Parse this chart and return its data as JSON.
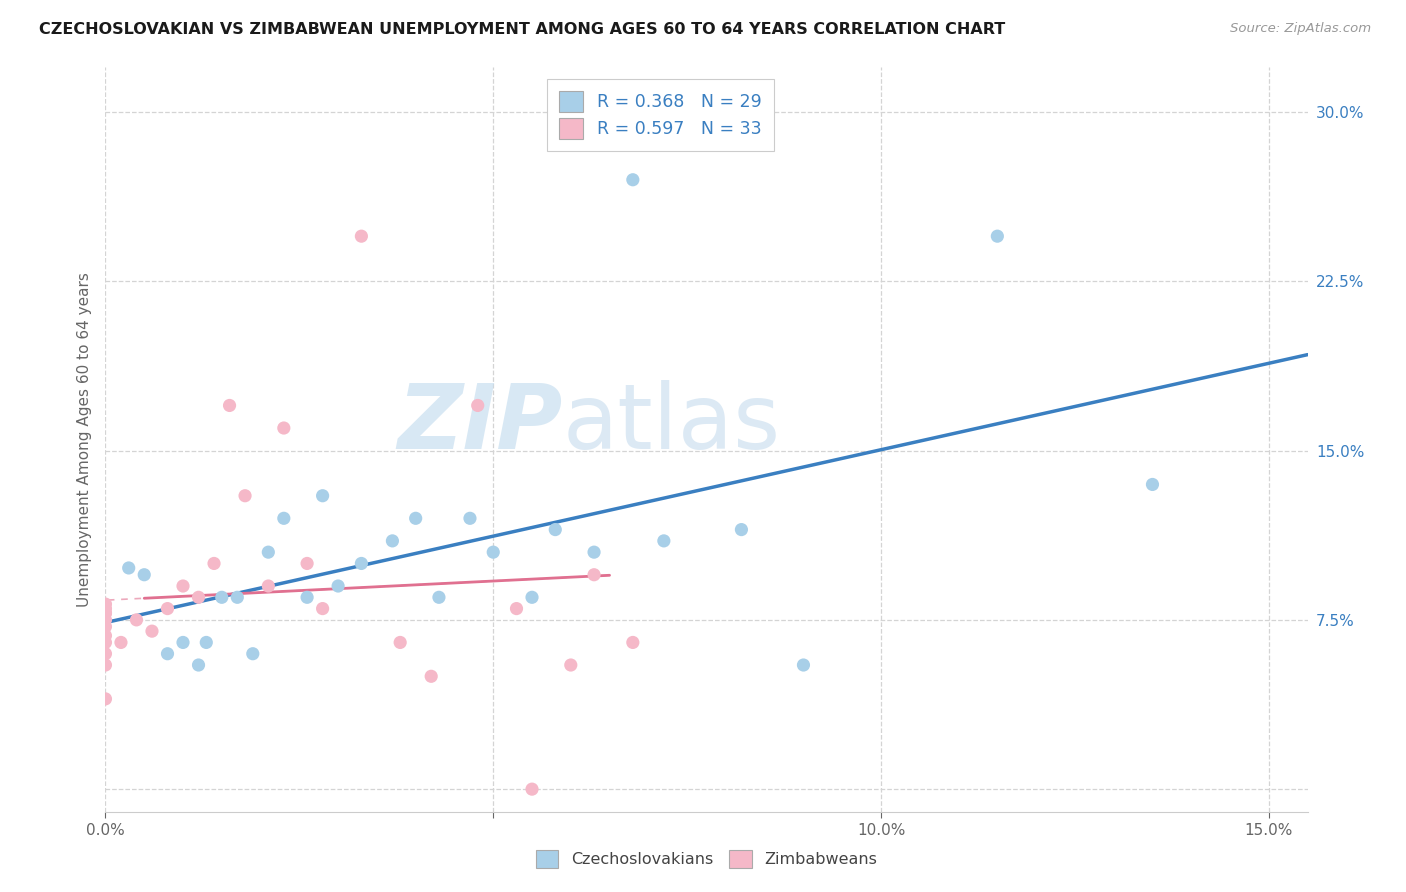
{
  "title": "CZECHOSLOVAKIAN VS ZIMBABWEAN UNEMPLOYMENT AMONG AGES 60 TO 64 YEARS CORRELATION CHART",
  "source": "Source: ZipAtlas.com",
  "ylabel": "Unemployment Among Ages 60 to 64 years",
  "xlim": [
    0.0,
    0.155
  ],
  "ylim": [
    -0.01,
    0.32
  ],
  "xticks": [
    0.0,
    0.05,
    0.1,
    0.15
  ],
  "yticks": [
    0.0,
    0.075,
    0.15,
    0.225,
    0.3
  ],
  "xticklabels": [
    "0.0%",
    "",
    "10.0%",
    "15.0%"
  ],
  "yticklabels": [
    "",
    "7.5%",
    "15.0%",
    "22.5%",
    "30.0%"
  ],
  "legend_r1": "R = 0.368",
  "legend_n1": "N = 29",
  "legend_r2": "R = 0.597",
  "legend_n2": "N = 33",
  "legend_label1": "Czechoslovakians",
  "legend_label2": "Zimbabweans",
  "blue_color": "#a8cfe8",
  "pink_color": "#f5b8c8",
  "blue_line_color": "#3a7fc1",
  "pink_line_color": "#e07090",
  "background_color": "#ffffff",
  "grid_color": "#d4d4d4",
  "title_color": "#1a1a1a",
  "source_color": "#999999",
  "tick_color": "#666666",
  "czech_x": [
    0.003,
    0.005,
    0.008,
    0.01,
    0.012,
    0.013,
    0.015,
    0.017,
    0.019,
    0.021,
    0.023,
    0.026,
    0.028,
    0.03,
    0.033,
    0.037,
    0.04,
    0.043,
    0.047,
    0.05,
    0.055,
    0.058,
    0.063,
    0.068,
    0.072,
    0.082,
    0.09,
    0.115,
    0.135
  ],
  "czech_y": [
    0.098,
    0.095,
    0.06,
    0.065,
    0.055,
    0.065,
    0.085,
    0.085,
    0.06,
    0.105,
    0.12,
    0.085,
    0.13,
    0.09,
    0.1,
    0.11,
    0.12,
    0.085,
    0.12,
    0.105,
    0.085,
    0.115,
    0.105,
    0.27,
    0.11,
    0.115,
    0.055,
    0.245,
    0.135
  ],
  "zimb_x": [
    0.0,
    0.0,
    0.0,
    0.0,
    0.0,
    0.0,
    0.0,
    0.0,
    0.0,
    0.0,
    0.0,
    0.002,
    0.004,
    0.006,
    0.008,
    0.01,
    0.012,
    0.014,
    0.016,
    0.018,
    0.021,
    0.023,
    0.026,
    0.028,
    0.033,
    0.038,
    0.042,
    0.048,
    0.053,
    0.055,
    0.06,
    0.063,
    0.068
  ],
  "zimb_y": [
    0.055,
    0.06,
    0.065,
    0.068,
    0.072,
    0.075,
    0.078,
    0.078,
    0.08,
    0.082,
    0.04,
    0.065,
    0.075,
    0.07,
    0.08,
    0.09,
    0.085,
    0.1,
    0.17,
    0.13,
    0.09,
    0.16,
    0.1,
    0.08,
    0.245,
    0.065,
    0.05,
    0.17,
    0.08,
    0.0,
    0.055,
    0.095,
    0.065
  ]
}
